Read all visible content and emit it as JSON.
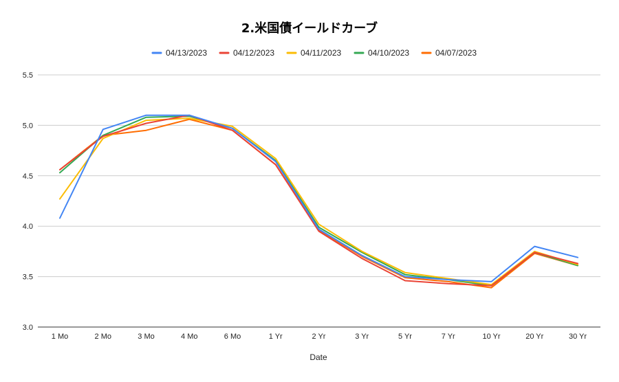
{
  "chart_data": {
    "type": "line",
    "title": "2.米国債イールドカーブ",
    "xlabel": "Date",
    "ylabel": "",
    "ylim": [
      3.0,
      5.5
    ],
    "yticks": [
      "3.0",
      "3.5",
      "4.0",
      "4.5",
      "5.0",
      "5.5"
    ],
    "ytick_values": [
      3.0,
      3.5,
      4.0,
      4.5,
      5.0,
      5.5
    ],
    "grid": true,
    "legend_position": "top",
    "categories": [
      "1 Mo",
      "2 Mo",
      "3 Mo",
      "4 Mo",
      "6 Mo",
      "1 Yr",
      "2 Yr",
      "3 Yr",
      "5 Yr",
      "7 Yr",
      "10 Yr",
      "20 Yr",
      "30 Yr"
    ],
    "series": [
      {
        "name": "04/13/2023",
        "color": "#4285f4",
        "values": [
          4.08,
          4.96,
          5.1,
          5.1,
          4.97,
          4.64,
          3.97,
          3.71,
          3.5,
          3.47,
          3.45,
          3.8,
          3.69
        ]
      },
      {
        "name": "04/12/2023",
        "color": "#ea4335",
        "values": [
          4.56,
          4.89,
          5.02,
          5.1,
          4.95,
          4.61,
          3.95,
          3.68,
          3.46,
          3.43,
          3.41,
          3.74,
          3.63
        ]
      },
      {
        "name": "04/11/2023",
        "color": "#fbbc04",
        "values": [
          4.27,
          4.87,
          5.05,
          5.07,
          4.99,
          4.67,
          4.02,
          3.75,
          3.54,
          3.48,
          3.42,
          3.75,
          3.62
        ]
      },
      {
        "name": "04/10/2023",
        "color": "#34a853",
        "values": [
          4.53,
          4.9,
          5.08,
          5.09,
          4.97,
          4.65,
          3.99,
          3.74,
          3.52,
          3.47,
          3.41,
          3.74,
          3.61
        ]
      },
      {
        "name": "04/07/2023",
        "color": "#ff6d01",
        "values": [
          4.56,
          4.9,
          4.95,
          5.06,
          4.95,
          4.61,
          3.96,
          3.7,
          3.49,
          3.45,
          3.39,
          3.73,
          3.61
        ]
      }
    ]
  }
}
